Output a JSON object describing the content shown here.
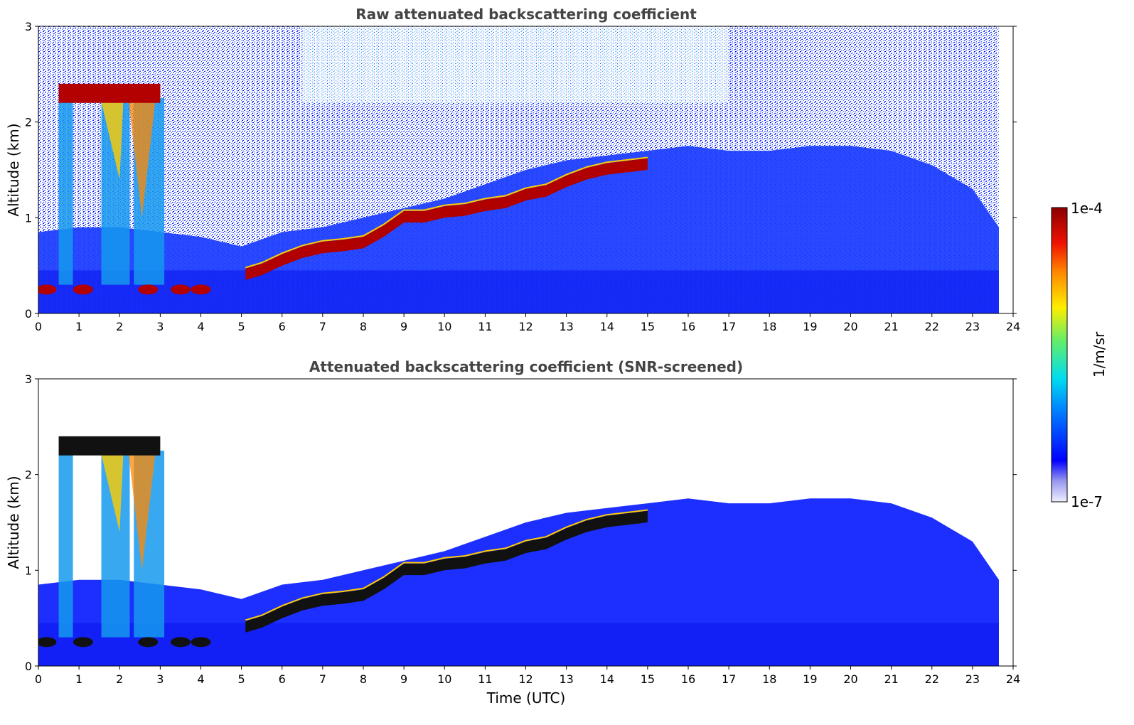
{
  "chart_data": [
    {
      "type": "heatmap",
      "title": "Raw attenuated backscattering coefficient",
      "xlabel": "",
      "ylabel": "Altitude (km)",
      "xlim": [
        0,
        24
      ],
      "ylim": [
        0,
        3
      ],
      "x_ticks": [
        "0",
        "1",
        "2",
        "3",
        "4",
        "5",
        "6",
        "7",
        "8",
        "9",
        "10",
        "11",
        "12",
        "13",
        "14",
        "15",
        "16",
        "17",
        "18",
        "19",
        "20",
        "21",
        "22",
        "23",
        "24"
      ],
      "y_ticks": [
        "0",
        "1",
        "2",
        "3"
      ],
      "data_end_time": 23.65,
      "boundary_layer_top_km": [
        [
          0.0,
          0.85
        ],
        [
          1.0,
          0.9
        ],
        [
          2.0,
          0.9
        ],
        [
          3.0,
          0.85
        ],
        [
          4.0,
          0.8
        ],
        [
          5.0,
          0.7
        ],
        [
          6.0,
          0.85
        ],
        [
          7.0,
          0.9
        ],
        [
          8.0,
          1.0
        ],
        [
          9.0,
          1.1
        ],
        [
          10.0,
          1.2
        ],
        [
          11.0,
          1.35
        ],
        [
          12.0,
          1.5
        ],
        [
          13.0,
          1.6
        ],
        [
          14.0,
          1.65
        ],
        [
          15.0,
          1.7
        ],
        [
          16.0,
          1.75
        ],
        [
          17.0,
          1.7
        ],
        [
          18.0,
          1.7
        ],
        [
          19.0,
          1.75
        ],
        [
          20.0,
          1.75
        ],
        [
          21.0,
          1.7
        ],
        [
          22.0,
          1.55
        ],
        [
          23.0,
          1.3
        ],
        [
          23.65,
          0.9
        ]
      ],
      "cloud_base_layer_km": [
        [
          5.1,
          0.35
        ],
        [
          5.5,
          0.4
        ],
        [
          6.0,
          0.5
        ],
        [
          6.5,
          0.58
        ],
        [
          7.0,
          0.63
        ],
        [
          7.5,
          0.65
        ],
        [
          8.0,
          0.68
        ],
        [
          8.5,
          0.8
        ],
        [
          9.0,
          0.95
        ],
        [
          9.5,
          0.95
        ],
        [
          10.0,
          1.0
        ],
        [
          10.5,
          1.02
        ],
        [
          11.0,
          1.07
        ],
        [
          11.5,
          1.1
        ],
        [
          12.0,
          1.18
        ],
        [
          12.5,
          1.22
        ],
        [
          13.0,
          1.32
        ],
        [
          13.5,
          1.4
        ],
        [
          14.0,
          1.45
        ],
        [
          15.0,
          1.5
        ]
      ],
      "high_cloud_km": [
        [
          0.5,
          2.25
        ],
        [
          1.5,
          2.3
        ],
        [
          2.0,
          2.33
        ],
        [
          2.5,
          2.3
        ],
        [
          3.0,
          2.32
        ]
      ],
      "low_cloud_km": [
        [
          0.2,
          0.25
        ],
        [
          1.1,
          0.25
        ],
        [
          2.7,
          0.25
        ],
        [
          3.5,
          0.25
        ],
        [
          4.0,
          0.25
        ]
      ]
    },
    {
      "type": "heatmap",
      "title": "Attenuated backscattering coefficient (SNR-screened)",
      "xlabel": "Time (UTC)",
      "ylabel": "Altitude (km)",
      "xlim": [
        0,
        24
      ],
      "ylim": [
        0,
        3
      ],
      "x_ticks": [
        "0",
        "1",
        "2",
        "3",
        "4",
        "5",
        "6",
        "7",
        "8",
        "9",
        "10",
        "11",
        "12",
        "13",
        "14",
        "15",
        "16",
        "17",
        "18",
        "19",
        "20",
        "21",
        "22",
        "23",
        "24"
      ],
      "y_ticks": [
        "0",
        "1",
        "2",
        "3"
      ],
      "data_end_time": 23.65
    }
  ],
  "colorbar": {
    "label": "1/m/sr",
    "min_label": "1e-7",
    "max_label": "1e-4",
    "colormap": [
      "#eeeeff",
      "#9999ee",
      "#0000ff",
      "#0088ff",
      "#00ddee",
      "#66ee66",
      "#ffee00",
      "#ff8800",
      "#ee1100",
      "#8b0000"
    ]
  }
}
